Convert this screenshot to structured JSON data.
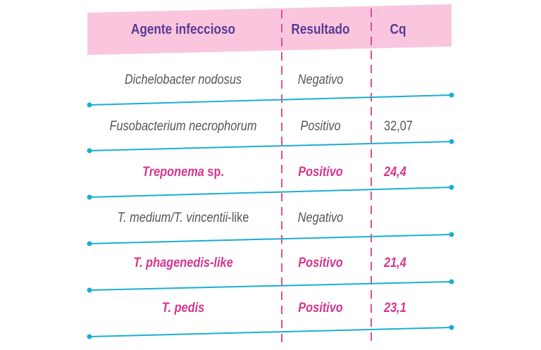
{
  "colors": {
    "header_bg": "#f9c6de",
    "header_text": "#5b3a96",
    "highlight": "#d6368f",
    "normal_text": "#555555",
    "rule_line": "#1aaed3",
    "separator": "#e24a9b"
  },
  "headers": {
    "agent": "Agente infeccioso",
    "result": "Resultado",
    "cq": "Cq"
  },
  "rows": [
    {
      "agent_a": "Dichelobacter nodosus",
      "agent_b": "",
      "result": "Negativo",
      "cq": "",
      "highlight": false
    },
    {
      "agent_a": "Fusobacterium necrophorum",
      "agent_b": "",
      "result": "Positivo",
      "cq": "32,07",
      "highlight": false
    },
    {
      "agent_a": "Treponema",
      "agent_b": " sp.",
      "result": "Positivo",
      "cq": "24,4",
      "highlight": true
    },
    {
      "agent_a": "T. medium/T. vincentii",
      "agent_b": "-like",
      "result": "Negativo",
      "cq": "",
      "highlight": false
    },
    {
      "agent_a": "T. phagenedis",
      "agent_b": "-like",
      "result": "Positivo",
      "cq": "21,4",
      "highlight": true
    },
    {
      "agent_a": "T. pedis",
      "agent_b": "",
      "result": "Positivo",
      "cq": "23,1",
      "highlight": true
    }
  ]
}
